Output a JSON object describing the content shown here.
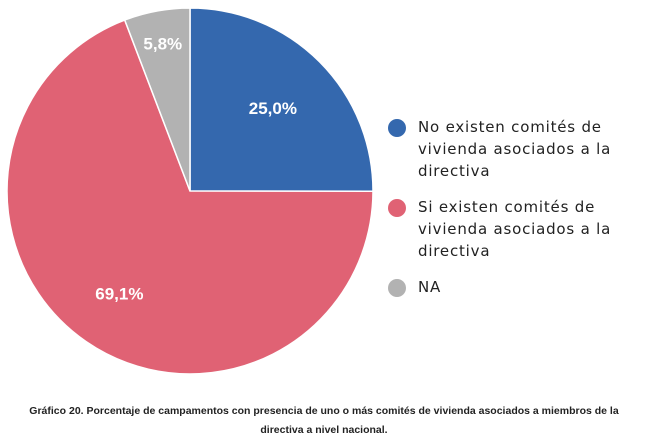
{
  "chart_data": {
    "type": "pie",
    "categories": [
      "No existen comités de vivienda asociados a la directiva",
      "Si existen comités de vivienda asociados a la directiva",
      "NA"
    ],
    "values": [
      25.0,
      69.1,
      5.8
    ],
    "data_labels": [
      "25,0%",
      "69,1%",
      "5,8%"
    ],
    "colors": [
      "#3468ae",
      "#e06274",
      "#b2b2b2"
    ],
    "title": "",
    "legend_position": "right",
    "start_angle_deg": 0,
    "direction": "clockwise"
  },
  "legend": {
    "items": [
      {
        "label": "No existen comités de vivienda asociados a la directiva",
        "color": "#3468ae"
      },
      {
        "label": "Si existen comités de vivienda asociados a la directiva",
        "color": "#e06274"
      },
      {
        "label": "NA",
        "color": "#b2b2b2"
      }
    ]
  },
  "caption": {
    "text": "Gráfico 20. Porcentaje de campamentos con presencia de uno o más comités de vivienda asociados a miembros de la directiva a nivel nacional."
  }
}
